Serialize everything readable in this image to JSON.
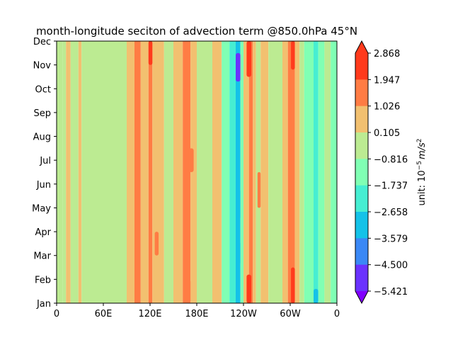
{
  "chart_data": {
    "type": "heatmap",
    "title": "month-longitude seciton of advection term @850.0hPa 45°N",
    "x_tick_labels": [
      "0",
      "60E",
      "120E",
      "180E",
      "120W",
      "60W",
      "0"
    ],
    "x_tick_degrees": [
      0,
      60,
      120,
      180,
      240,
      300,
      360
    ],
    "xlim": [
      0,
      360
    ],
    "y_tick_labels": [
      "Jan",
      "Feb",
      "Mar",
      "Apr",
      "May",
      "Jun",
      "Jul",
      "Aug",
      "Sep",
      "Oct",
      "Nov",
      "Dec"
    ],
    "ylim": [
      1,
      12
    ],
    "colorbar": {
      "label_prefix": "unit: 10",
      "label_exponent": "−5",
      "label_unit": "m/s",
      "label_unit_exponent": "2",
      "levels": [
        "2.868",
        "1.947",
        "1.026",
        "0.105",
        "−0.816",
        "−1.737",
        "−2.658",
        "−3.579",
        "−4.500",
        "−5.421"
      ],
      "level_values": [
        2.868,
        1.947,
        1.026,
        0.105,
        -0.816,
        -1.737,
        -2.658,
        -3.579,
        -4.5,
        -5.421
      ],
      "colors": [
        "#ff3a1c",
        "#ff7c44",
        "#f2c070",
        "#bceb92",
        "#80ffb4",
        "#46eed2",
        "#14c2e8",
        "#3a88f6",
        "#6a32fe",
        "#8000ff"
      ],
      "extend": "both"
    },
    "longitude_bands": [
      {
        "lon": [
          0,
          8
        ],
        "level": 0.105
      },
      {
        "lon": [
          8,
          12
        ],
        "level": 0.105
      },
      {
        "lon": [
          12,
          18
        ],
        "level": 1.026
      },
      {
        "lon": [
          18,
          28
        ],
        "level": 0.105
      },
      {
        "lon": [
          28,
          32
        ],
        "level": 1.026
      },
      {
        "lon": [
          32,
          90
        ],
        "level": 0.105
      },
      {
        "lon": [
          90,
          100
        ],
        "level": 1.026
      },
      {
        "lon": [
          100,
          108
        ],
        "level": 1.947
      },
      {
        "lon": [
          108,
          118
        ],
        "level": 1.026
      },
      {
        "lon": [
          118,
          123
        ],
        "level": 1.947
      },
      {
        "lon": [
          123,
          138
        ],
        "level": 1.026
      },
      {
        "lon": [
          138,
          150
        ],
        "level": 0.105
      },
      {
        "lon": [
          150,
          162
        ],
        "level": 1.026
      },
      {
        "lon": [
          162,
          172
        ],
        "level": 1.947
      },
      {
        "lon": [
          172,
          180
        ],
        "level": 1.026
      },
      {
        "lon": [
          180,
          200
        ],
        "level": 0.105
      },
      {
        "lon": [
          200,
          212
        ],
        "level": 1.026
      },
      {
        "lon": [
          212,
          222
        ],
        "level": -0.816
      },
      {
        "lon": [
          222,
          230
        ],
        "level": -1.737
      },
      {
        "lon": [
          230,
          236
        ],
        "level": -2.658
      },
      {
        "lon": [
          236,
          240
        ],
        "level": -0.816
      },
      {
        "lon": [
          240,
          247
        ],
        "level": 1.026
      },
      {
        "lon": [
          247,
          252
        ],
        "level": 1.947
      },
      {
        "lon": [
          252,
          256
        ],
        "level": 1.026
      },
      {
        "lon": [
          256,
          262
        ],
        "level": 0.105
      },
      {
        "lon": [
          262,
          272
        ],
        "level": 1.026
      },
      {
        "lon": [
          272,
          290
        ],
        "level": 0.105
      },
      {
        "lon": [
          290,
          297
        ],
        "level": 1.026
      },
      {
        "lon": [
          297,
          306
        ],
        "level": 1.947
      },
      {
        "lon": [
          306,
          312
        ],
        "level": 1.026
      },
      {
        "lon": [
          312,
          318
        ],
        "level": 0.105
      },
      {
        "lon": [
          318,
          330
        ],
        "level": -0.816
      },
      {
        "lon": [
          330,
          336
        ],
        "level": -1.737
      },
      {
        "lon": [
          336,
          344
        ],
        "level": -0.816
      },
      {
        "lon": [
          344,
          352
        ],
        "level": 0.105
      },
      {
        "lon": [
          352,
          360
        ],
        "level": -0.816
      }
    ],
    "features": [
      {
        "lon": [
          244,
          250
        ],
        "months": [
          1,
          2.2
        ],
        "level": 2.868
      },
      {
        "lon": [
          244,
          250
        ],
        "months": [
          10.5,
          12
        ],
        "level": 2.868
      },
      {
        "lon": [
          301,
          306
        ],
        "months": [
          1,
          2.5
        ],
        "level": 2.868
      },
      {
        "lon": [
          301,
          306
        ],
        "months": [
          10.8,
          12
        ],
        "level": 2.868
      },
      {
        "lon": [
          230,
          236
        ],
        "months": [
          10.3,
          11.5
        ],
        "level": -4.5
      },
      {
        "lon": [
          230,
          236
        ],
        "months": [
          4.5,
          5.8
        ],
        "level": -2.658
      },
      {
        "lon": [
          230,
          236
        ],
        "months": [
          2.6,
          3.6
        ],
        "level": -2.658
      },
      {
        "lon": [
          330,
          336
        ],
        "months": [
          1,
          1.6
        ],
        "level": -2.658
      },
      {
        "lon": [
          126,
          131
        ],
        "months": [
          3,
          4
        ],
        "level": 1.947
      },
      {
        "lon": [
          170,
          176
        ],
        "months": [
          6.5,
          7.5
        ],
        "level": 1.947
      },
      {
        "lon": [
          118,
          123
        ],
        "months": [
          11,
          12
        ],
        "level": 2.868
      },
      {
        "lon": [
          166,
          172
        ],
        "months": [
          1,
          2
        ],
        "level": 1.947
      },
      {
        "lon": [
          258,
          262
        ],
        "months": [
          5,
          6.5
        ],
        "level": 1.947
      }
    ]
  }
}
